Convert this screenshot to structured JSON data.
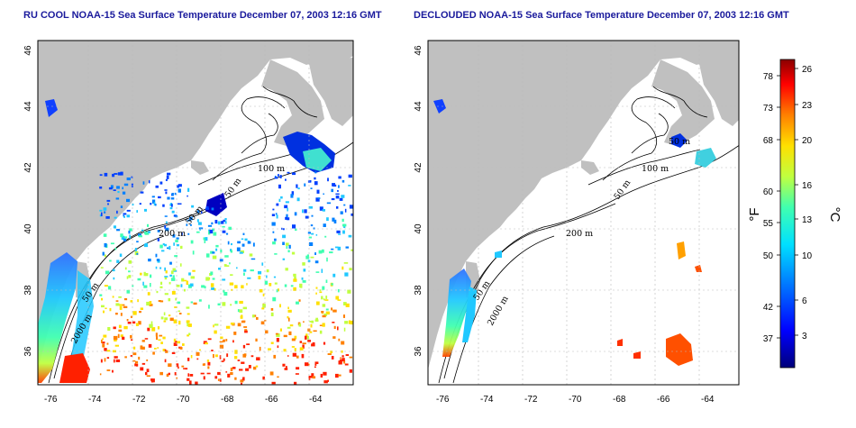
{
  "panels": [
    {
      "id": "left",
      "title": "RU COOL NOAA-15 Sea Surface Temperature December 07, 2003 12:16 GMT"
    },
    {
      "id": "right",
      "title": "DECLOUDED NOAA-15 Sea Surface Temperature December 07, 2003 12:16 GMT"
    }
  ],
  "axes": {
    "lon_ticks": [
      "-76",
      "-74",
      "-72",
      "-70",
      "-68",
      "-66",
      "-64"
    ],
    "lat_ticks": [
      "46",
      "44",
      "42",
      "40",
      "38",
      "36"
    ]
  },
  "contour_labels": {
    "left": [
      "100 m",
      "50 m",
      "200 m",
      "50 m",
      "2000 m",
      "50 m"
    ],
    "right": [
      "100 m",
      "50 m",
      "200 m",
      "50 m",
      "2000 m",
      "50 m"
    ]
  },
  "colorbar": {
    "fahrenheit_unit": "°F",
    "celsius_unit": "°C",
    "fahrenheit_ticks": [
      "78",
      "73",
      "68",
      "60",
      "55",
      "50",
      "42",
      "37"
    ],
    "celsius_ticks": [
      "26",
      "23",
      "20",
      "16",
      "13",
      "10",
      "6",
      "3"
    ],
    "colors": [
      "#00007a",
      "#0000ff",
      "#0080ff",
      "#00e0ff",
      "#40ffb0",
      "#c0ff40",
      "#ffe000",
      "#ff8000",
      "#ff0000",
      "#8a0000"
    ]
  },
  "colors": {
    "land": "#c0c0c0",
    "title": "#1a1a9c",
    "grid": "#bbbbbb"
  }
}
